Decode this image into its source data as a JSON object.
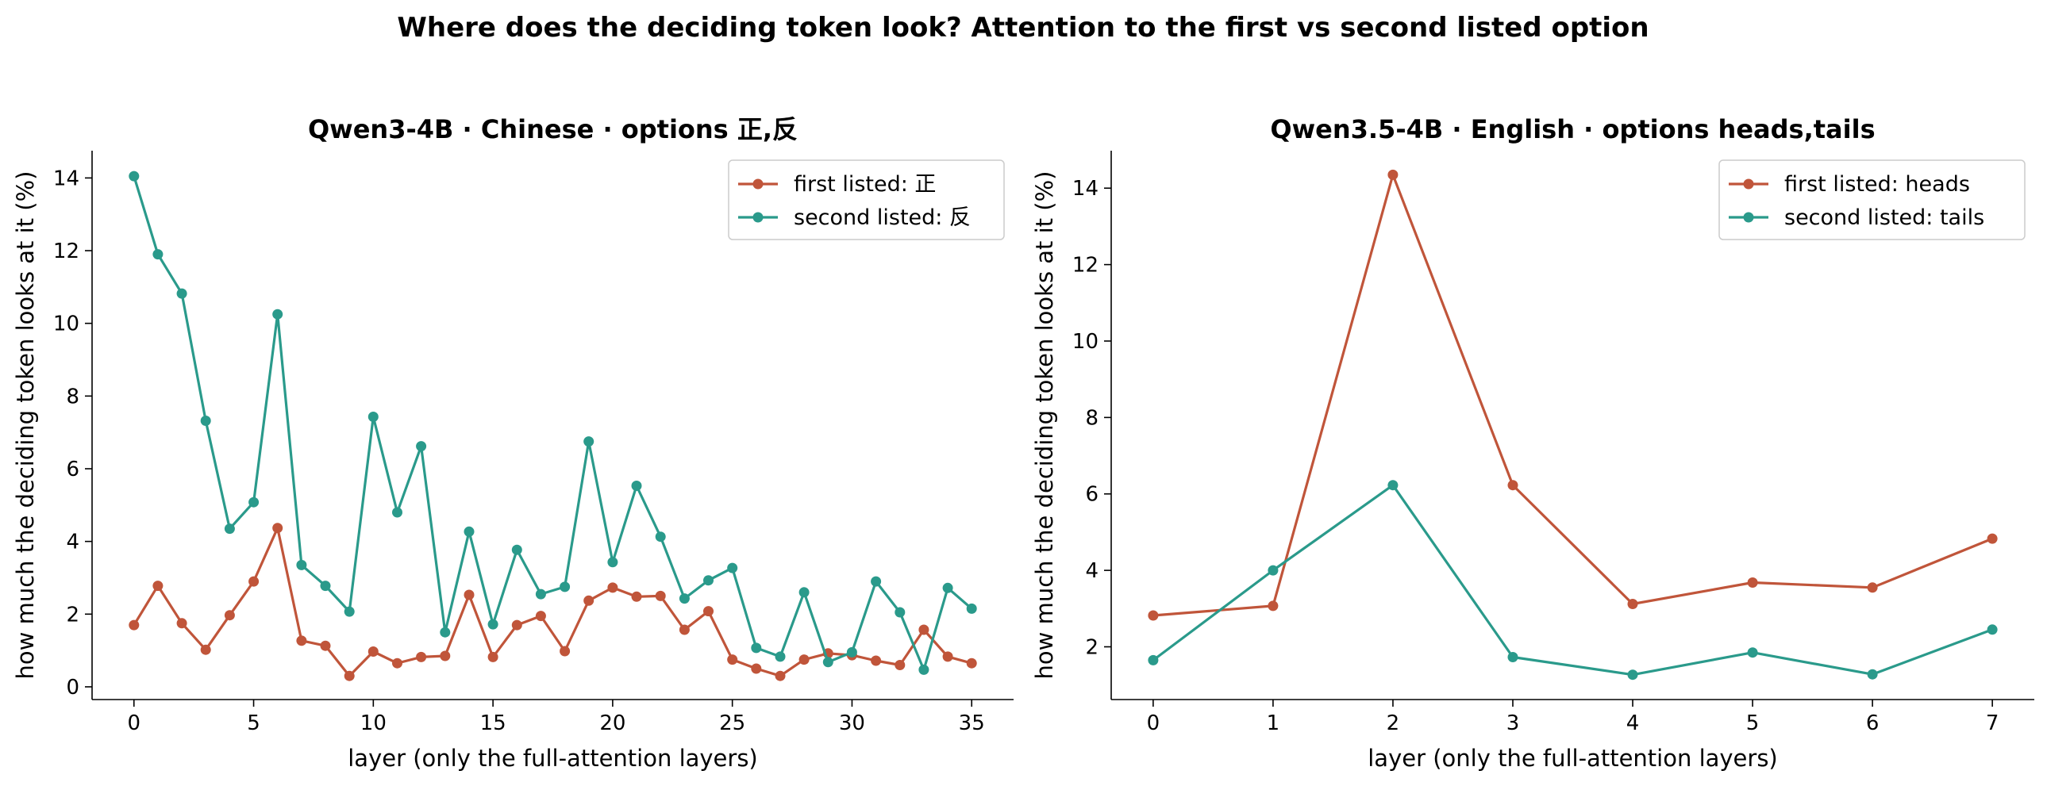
{
  "figure": {
    "suptitle": "Where does the deciding token look? Attention to the first vs second listed option"
  },
  "colors": {
    "first": "#c0553a",
    "second": "#2a9a8b"
  },
  "chart_data": [
    {
      "type": "line",
      "title": "Qwen3-4B · Chinese · options 正,反",
      "xlabel": "layer  (only the full-attention layers)",
      "ylabel": "how much the deciding token looks at it  (%)",
      "xlim": [
        -1.75,
        36.75
      ],
      "ylim": [
        -0.35,
        14.75
      ],
      "xticks": [
        0,
        5,
        10,
        15,
        20,
        25,
        30,
        35
      ],
      "yticks": [
        0,
        2,
        4,
        6,
        8,
        10,
        12,
        14
      ],
      "legend_position": "top-right",
      "grid": false,
      "x": [
        0,
        1,
        2,
        3,
        4,
        5,
        6,
        7,
        8,
        9,
        10,
        11,
        12,
        13,
        14,
        15,
        16,
        17,
        18,
        19,
        20,
        21,
        22,
        23,
        24,
        25,
        26,
        27,
        28,
        29,
        30,
        31,
        32,
        33,
        34,
        35
      ],
      "series": [
        {
          "name": "first listed: 正",
          "color": "first",
          "values": [
            1.7,
            2.78,
            1.75,
            1.02,
            1.97,
            2.9,
            4.37,
            1.27,
            1.13,
            0.3,
            0.97,
            0.65,
            0.82,
            0.85,
            2.53,
            0.82,
            1.7,
            1.95,
            0.98,
            2.37,
            2.73,
            2.48,
            2.5,
            1.57,
            2.08,
            0.75,
            0.5,
            0.3,
            0.75,
            0.92,
            0.87,
            0.72,
            0.6,
            1.57,
            0.83,
            0.65
          ]
        },
        {
          "name": "second listed: 反",
          "color": "second",
          "values": [
            14.05,
            11.9,
            10.82,
            7.32,
            4.35,
            5.08,
            10.25,
            3.35,
            2.78,
            2.07,
            7.43,
            4.8,
            6.62,
            1.5,
            4.27,
            1.72,
            3.77,
            2.55,
            2.75,
            6.75,
            3.43,
            5.53,
            4.13,
            2.43,
            2.93,
            3.27,
            1.07,
            0.83,
            2.6,
            0.68,
            0.95,
            2.9,
            2.05,
            0.47,
            2.72,
            2.15
          ]
        }
      ]
    },
    {
      "type": "line",
      "title": "Qwen3.5-4B · English · options heads,tails",
      "xlabel": "layer  (only the full-attention layers)",
      "ylabel": "how much the deciding token looks at it  (%)",
      "xlim": [
        -0.35,
        7.35
      ],
      "ylim": [
        0.62,
        14.98
      ],
      "xticks": [
        0,
        1,
        2,
        3,
        4,
        5,
        6,
        7
      ],
      "yticks": [
        2,
        4,
        6,
        8,
        10,
        12,
        14
      ],
      "legend_position": "top-right",
      "grid": false,
      "x": [
        0,
        1,
        2,
        3,
        4,
        5,
        6,
        7
      ],
      "series": [
        {
          "name": "first listed: heads",
          "color": "first",
          "values": [
            2.82,
            3.07,
            14.35,
            6.23,
            3.12,
            3.68,
            3.55,
            4.83
          ]
        },
        {
          "name": "second listed: tails",
          "color": "second",
          "values": [
            1.65,
            4.0,
            6.23,
            1.73,
            1.27,
            1.85,
            1.28,
            2.45
          ]
        }
      ]
    }
  ]
}
